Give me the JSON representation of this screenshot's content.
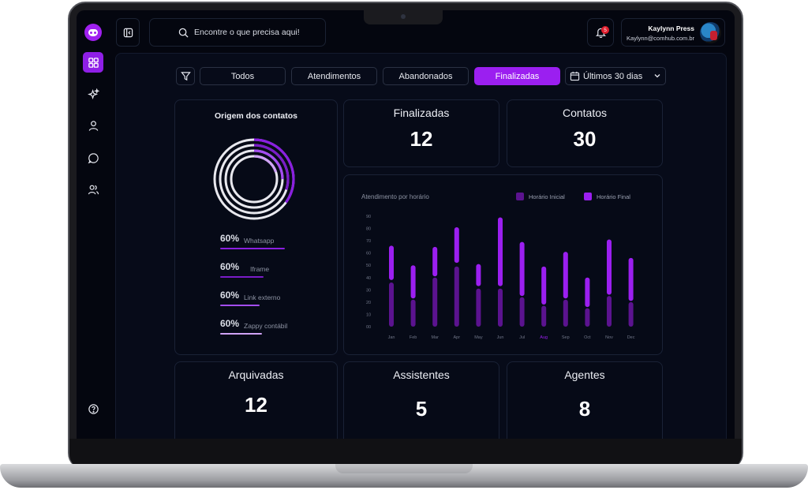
{
  "app": {
    "search": {
      "placeholder": "Encontre o que precisa aqui!"
    },
    "notifications": {
      "count": "5"
    },
    "user": {
      "name": "Kaylynn Press",
      "email": "Kaylynn@comhub.com.br"
    }
  },
  "sidebar": {
    "items": [
      {
        "icon": "dashboard-icon",
        "active": true
      },
      {
        "icon": "sparkles-icon",
        "active": false
      },
      {
        "icon": "user-icon",
        "active": false
      },
      {
        "icon": "chat-icon",
        "active": false
      },
      {
        "icon": "users-icon",
        "active": false
      },
      {
        "icon": "help-icon",
        "active": false
      }
    ]
  },
  "filters": {
    "tabs": [
      {
        "label": "Todos",
        "active": false
      },
      {
        "label": "Atendimentos",
        "active": false
      },
      {
        "label": "Abandonados",
        "active": false
      },
      {
        "label": "Finalizadas",
        "active": true
      }
    ],
    "date_range": "Últimos 30 dias"
  },
  "cards": {
    "finalizadas": {
      "title": "Finalizadas",
      "value": "12"
    },
    "contatos": {
      "title": "Contatos",
      "value": "30"
    },
    "arquivadas": {
      "title": "Arquivadas",
      "value": "12"
    },
    "assistentes": {
      "title": "Assistentes",
      "value": "5"
    },
    "agentes": {
      "title": "Agentes",
      "value": "8"
    }
  },
  "origin": {
    "title": "Origem dos contatos",
    "items": [
      {
        "pct": "60%",
        "label": "Whatsapp",
        "color": "#8a1fe0"
      },
      {
        "pct": "60%",
        "label": "Iframe",
        "color": "#7a1cc8"
      },
      {
        "pct": "60%",
        "label": "Link externo",
        "color": "#a34df0"
      },
      {
        "pct": "60%",
        "label": "Zappy contábil",
        "color": "#cfa3f5"
      }
    ],
    "ring_fill": [
      0.35,
      0.3,
      0.25,
      0.2
    ]
  },
  "colors": {
    "accent": "#9b1ff0",
    "inicial": "#5b138f",
    "final": "#9b1ff0"
  },
  "chart_data": {
    "type": "bar",
    "title": "Atendimento por horário",
    "categories": [
      "Jan",
      "Feb",
      "Mar",
      "Apr",
      "May",
      "Jun",
      "Jul",
      "Aug",
      "Sep",
      "Oct",
      "Nov",
      "Dec"
    ],
    "highlight_category": "Aug",
    "yticks": [
      "90",
      "80",
      "70",
      "60",
      "50",
      "40",
      "30",
      "20",
      "10",
      "00"
    ],
    "ylim": [
      0,
      90
    ],
    "series": [
      {
        "name": "Horário Inicial",
        "ranges": [
          [
            0,
            36
          ],
          [
            0,
            22
          ],
          [
            0,
            40
          ],
          [
            0,
            49
          ],
          [
            0,
            31
          ],
          [
            0,
            31
          ],
          [
            0,
            24
          ],
          [
            0,
            17
          ],
          [
            0,
            22
          ],
          [
            0,
            15
          ],
          [
            0,
            25
          ],
          [
            0,
            20
          ]
        ]
      },
      {
        "name": "Horário Final",
        "ranges": [
          [
            38,
            66
          ],
          [
            23,
            50
          ],
          [
            41,
            65
          ],
          [
            52,
            81
          ],
          [
            33,
            51
          ],
          [
            33,
            89
          ],
          [
            25,
            69
          ],
          [
            18,
            49
          ],
          [
            23,
            61
          ],
          [
            16,
            40
          ],
          [
            26,
            71
          ],
          [
            21,
            56
          ]
        ]
      }
    ]
  }
}
